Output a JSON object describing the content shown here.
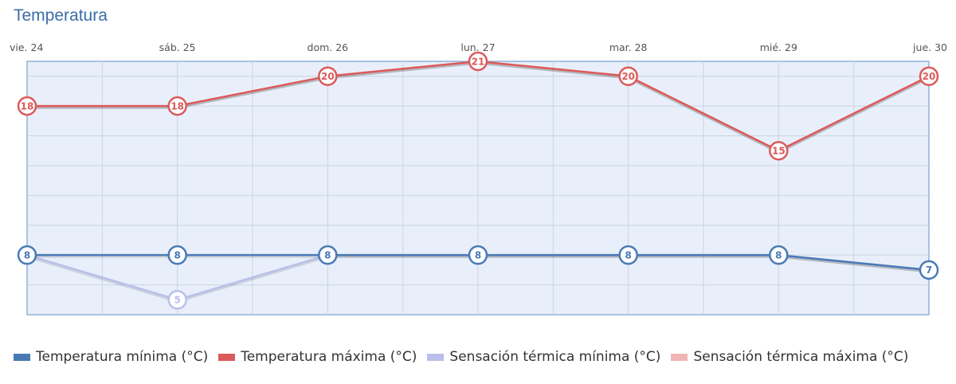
{
  "chart_data": {
    "type": "line",
    "title": "Temperatura",
    "categories": [
      "vie. 24",
      "sáb. 25",
      "dom. 26",
      "lun. 27",
      "mar. 28",
      "mié. 29",
      "jue. 30"
    ],
    "ylim": [
      4,
      21
    ],
    "grid": true,
    "legend_position": "bottom-left",
    "series": [
      {
        "name": "Temperatura mínima (°C)",
        "values": [
          8,
          8,
          8,
          8,
          8,
          8,
          7
        ],
        "color": "#4a7ab5",
        "show_labels": true
      },
      {
        "name": "Temperatura máxima (°C)",
        "values": [
          18,
          18,
          20,
          21,
          20,
          15,
          20
        ],
        "color": "#db5a5a",
        "show_labels": true
      },
      {
        "name": "Sensación térmica mínima (°C)",
        "values": [
          8,
          5,
          8,
          8,
          8,
          8,
          7
        ],
        "color": "#b9bfea",
        "show_labels": true
      },
      {
        "name": "Sensación térmica máxima (°C)",
        "values": [
          18,
          18,
          20,
          21,
          20,
          15,
          20
        ],
        "color": "#f0b4b4",
        "show_labels": false
      }
    ]
  }
}
